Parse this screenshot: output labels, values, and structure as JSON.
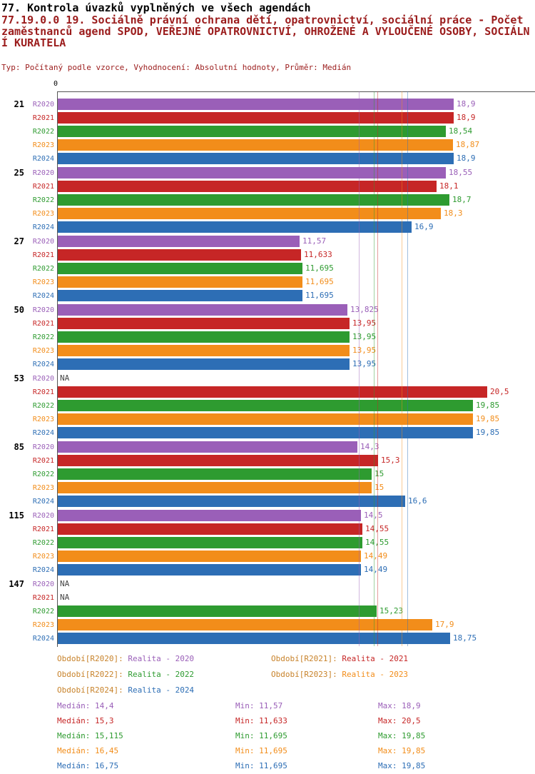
{
  "title": "77. Kontrola úvazků vyplněných ve všech agendách",
  "subtitle": "77.19.0.0 19. Sociálně právní ochrana dětí, opatrovnictví, sociální práce - Počet zaměstnanců agend SPOD, VEŘEJNÉ OPATROVNICTVÍ, OHROŽENÉ A VYLOUČENÉ OSOBY, SOCIÁLNÍ KURATELA",
  "meta": "Typ: Počítaný podle vzorce, Vyhodnocení: Absolutní hodnoty, Průměr: Medián",
  "axis_zero_label": "0",
  "na_label": "NA",
  "chart_data": {
    "type": "bar",
    "orientation": "horizontal",
    "categories": [
      "21",
      "25",
      "27",
      "50",
      "53",
      "85",
      "115",
      "147"
    ],
    "xlim": [
      0,
      22.8
    ],
    "grid": "vertical-median-line-per-series",
    "legend_position": "bottom",
    "series": [
      {
        "name": "R2020",
        "color": "#9a5fb8",
        "median": 14.4,
        "values": [
          "18,9",
          "18,55",
          "11,57",
          "13,825",
          "NA",
          "14,3",
          "14,5",
          "NA"
        ]
      },
      {
        "name": "R2021",
        "color": "#c62626",
        "median": 15.3,
        "values": [
          "18,9",
          "18,1",
          "11,633",
          "13,95",
          "20,5",
          "15,3",
          "14,55",
          "NA"
        ]
      },
      {
        "name": "R2022",
        "color": "#2e9b30",
        "median": 15.115,
        "values": [
          "18,54",
          "18,7",
          "11,695",
          "13,95",
          "19,85",
          "15",
          "14,55",
          "15,23"
        ]
      },
      {
        "name": "R2023",
        "color": "#f28d1a",
        "median": 16.45,
        "values": [
          "18,87",
          "18,3",
          "11,695",
          "13,95",
          "19,85",
          "15",
          "14,49",
          "17,9"
        ]
      },
      {
        "name": "R2024",
        "color": "#2d6eb5",
        "median": 16.75,
        "values": [
          "18,9",
          "16,9",
          "11,695",
          "13,95",
          "19,85",
          "16,6",
          "14,49",
          "18,75"
        ]
      }
    ]
  },
  "legend": [
    {
      "prefix": "Období[R2020]:",
      "label": "Realita - 2020",
      "color": "#9a5fb8"
    },
    {
      "prefix": "Období[R2021]:",
      "label": "Realita - 2021",
      "color": "#c62626"
    },
    {
      "prefix": "Období[R2022]:",
      "label": "Realita - 2022",
      "color": "#2e9b30"
    },
    {
      "prefix": "Období[R2023]:",
      "label": "Realita - 2023",
      "color": "#f28d1a"
    },
    {
      "prefix": "Období[R2024]:",
      "label": "Realita - 2024",
      "color": "#2d6eb5"
    }
  ],
  "stats": [
    {
      "color": "#9a5fb8",
      "median": "Medián: 14,4",
      "min": "Min: 11,57",
      "max": "Max: 18,9"
    },
    {
      "color": "#c62626",
      "median": "Medián: 15,3",
      "min": "Min: 11,633",
      "max": "Max: 20,5"
    },
    {
      "color": "#2e9b30",
      "median": "Medián: 15,115",
      "min": "Min: 11,695",
      "max": "Max: 19,85"
    },
    {
      "color": "#f28d1a",
      "median": "Medián: 16,45",
      "min": "Min: 11,695",
      "max": "Max: 19,85"
    },
    {
      "color": "#2d6eb5",
      "median": "Medián: 16,75",
      "min": "Min: 11,695",
      "max": "Max: 19,85"
    }
  ]
}
